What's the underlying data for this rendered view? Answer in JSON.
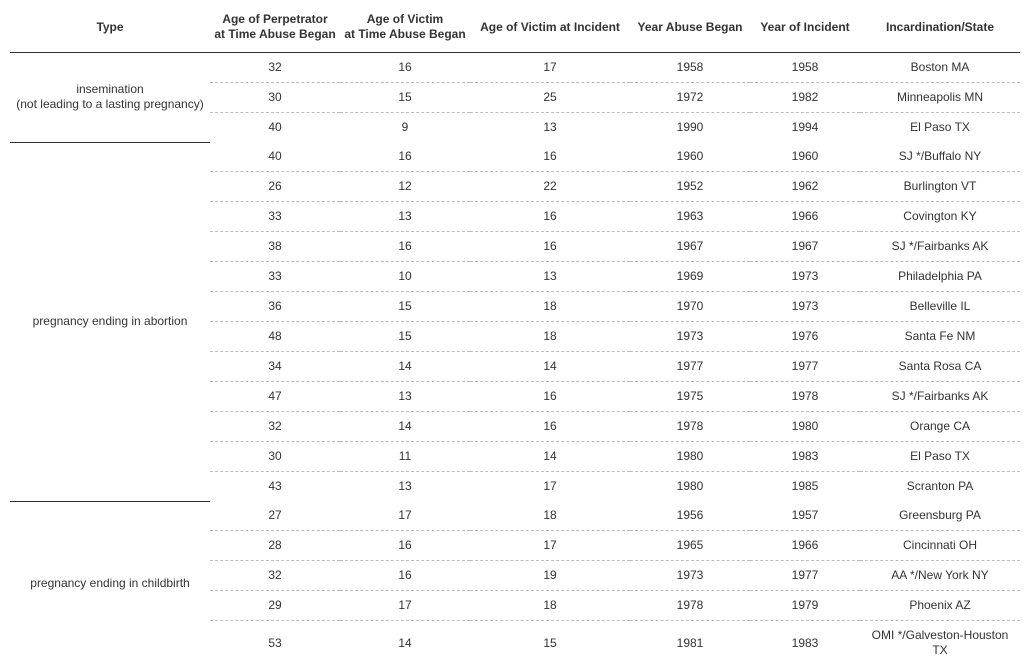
{
  "table": {
    "columns": [
      "Type",
      "Age of Perpetrator\nat Time Abuse Began",
      "Age of Victim\nat Time Abuse Began",
      "Age of Victim at Incident",
      "Year Abuse Began",
      "Year of Incident",
      "Incardination/State"
    ],
    "groups": [
      {
        "type_label": "insemination\n(not leading to a lasting pregnancy)",
        "rows": [
          {
            "perp_age": "32",
            "victim_begin": "16",
            "victim_incident": "17",
            "year_begin": "1958",
            "year_incident": "1958",
            "state": "Boston MA"
          },
          {
            "perp_age": "30",
            "victim_begin": "15",
            "victim_incident": "25",
            "year_begin": "1972",
            "year_incident": "1982",
            "state": "Minneapolis MN"
          },
          {
            "perp_age": "40",
            "victim_begin": "9",
            "victim_incident": "13",
            "year_begin": "1990",
            "year_incident": "1994",
            "state": "El Paso TX"
          }
        ]
      },
      {
        "type_label": "pregnancy ending in abortion",
        "rows": [
          {
            "perp_age": "40",
            "victim_begin": "16",
            "victim_incident": "16",
            "year_begin": "1960",
            "year_incident": "1960",
            "state": "SJ */Buffalo NY"
          },
          {
            "perp_age": "26",
            "victim_begin": "12",
            "victim_incident": "22",
            "year_begin": "1952",
            "year_incident": "1962",
            "state": "Burlington VT"
          },
          {
            "perp_age": "33",
            "victim_begin": "13",
            "victim_incident": "16",
            "year_begin": "1963",
            "year_incident": "1966",
            "state": "Covington KY"
          },
          {
            "perp_age": "38",
            "victim_begin": "16",
            "victim_incident": "16",
            "year_begin": "1967",
            "year_incident": "1967",
            "state": "SJ */Fairbanks AK"
          },
          {
            "perp_age": "33",
            "victim_begin": "10",
            "victim_incident": "13",
            "year_begin": "1969",
            "year_incident": "1973",
            "state": "Philadelphia PA"
          },
          {
            "perp_age": "36",
            "victim_begin": "15",
            "victim_incident": "18",
            "year_begin": "1970",
            "year_incident": "1973",
            "state": "Belleville IL"
          },
          {
            "perp_age": "48",
            "victim_begin": "15",
            "victim_incident": "18",
            "year_begin": "1973",
            "year_incident": "1976",
            "state": "Santa Fe NM"
          },
          {
            "perp_age": "34",
            "victim_begin": "14",
            "victim_incident": "14",
            "year_begin": "1977",
            "year_incident": "1977",
            "state": "Santa Rosa CA"
          },
          {
            "perp_age": "47",
            "victim_begin": "13",
            "victim_incident": "16",
            "year_begin": "1975",
            "year_incident": "1978",
            "state": "SJ */Fairbanks AK"
          },
          {
            "perp_age": "32",
            "victim_begin": "14",
            "victim_incident": "16",
            "year_begin": "1978",
            "year_incident": "1980",
            "state": "Orange CA"
          },
          {
            "perp_age": "30",
            "victim_begin": "11",
            "victim_incident": "14",
            "year_begin": "1980",
            "year_incident": "1983",
            "state": "El Paso TX"
          },
          {
            "perp_age": "43",
            "victim_begin": "13",
            "victim_incident": "17",
            "year_begin": "1980",
            "year_incident": "1985",
            "state": "Scranton PA"
          }
        ]
      },
      {
        "type_label": "pregnancy ending in childbirth",
        "rows": [
          {
            "perp_age": "27",
            "victim_begin": "17",
            "victim_incident": "18",
            "year_begin": "1956",
            "year_incident": "1957",
            "state": "Greensburg PA"
          },
          {
            "perp_age": "28",
            "victim_begin": "16",
            "victim_incident": "17",
            "year_begin": "1965",
            "year_incident": "1966",
            "state": "Cincinnati OH"
          },
          {
            "perp_age": "32",
            "victim_begin": "16",
            "victim_incident": "19",
            "year_begin": "1973",
            "year_incident": "1977",
            "state": "AA */New York NY"
          },
          {
            "perp_age": "29",
            "victim_begin": "17",
            "victim_incident": "18",
            "year_begin": "1978",
            "year_incident": "1979",
            "state": "Phoenix AZ"
          },
          {
            "perp_age": "53",
            "victim_begin": "14",
            "victim_incident": "15",
            "year_begin": "1981",
            "year_incident": "1983",
            "state": "OMI */Galveston-Houston TX"
          }
        ]
      }
    ],
    "style": {
      "background_color": "#ffffff",
      "text_color": "#333333",
      "header_fontsize_pt": 9,
      "cell_fontsize_pt": 9,
      "solid_border_color": "#333333",
      "dashed_border_color": "#bdbdbd",
      "font_family": "Arial"
    }
  }
}
